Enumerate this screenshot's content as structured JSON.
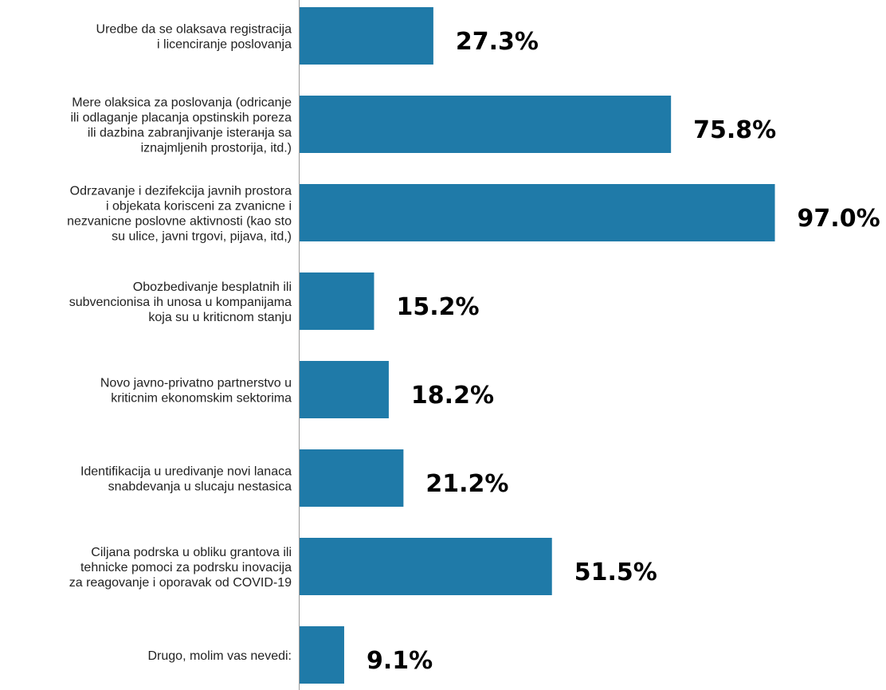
{
  "chart_data": {
    "type": "bar",
    "orientation": "horizontal",
    "title": "",
    "xlabel": "",
    "ylabel": "",
    "xlim": [
      0,
      100
    ],
    "grid": false,
    "legend": "none",
    "bar_color": "#1f7aa8",
    "categories": [
      [
        "Uredbe da se olaksava registracija",
        "i licenciranje poslovanja"
      ],
      [
        "Mere olaksica za poslovanja (odricanje",
        "ili odlaganje placanja opstinskih poreza",
        "ili dazbina zabranjivanje isterанja sa",
        "iznajmljenih prostorija, itd.)"
      ],
      [
        "Odrzavanje i dezifekcija javnih prostora",
        "i objekata korisceni za zvanicne i",
        "nezvanicne poslovne aktivnosti (kao sto",
        "su ulice, javni trgovi, pijava, itd,)"
      ],
      [
        "Obozbedivanje besplatnih ili",
        "subvencionisa ih unosa u kompanijama",
        "koja su u kriticnom stanju"
      ],
      [
        "Novo javno-privatno partnerstvo u",
        "kriticnim ekonomskim sektorima"
      ],
      [
        "Identifikacija u uredivanje novi lanaca",
        "snabdevanja u slucaju nestasica"
      ],
      [
        "Ciljana podrska u obliku grantova ili",
        "tehnicke pomoci za podrsku inovacija",
        "za reagovanje i oporavak od COVID-19"
      ],
      [
        "Drugo, molim vas nevedi:"
      ]
    ],
    "values": [
      27.3,
      75.8,
      97.0,
      15.2,
      18.2,
      21.2,
      51.5,
      9.1
    ],
    "value_labels": [
      "27.3%",
      "75.8%",
      "97.0%",
      "15.2%",
      "18.2%",
      "21.2%",
      "51.5%",
      "9.1%"
    ]
  }
}
